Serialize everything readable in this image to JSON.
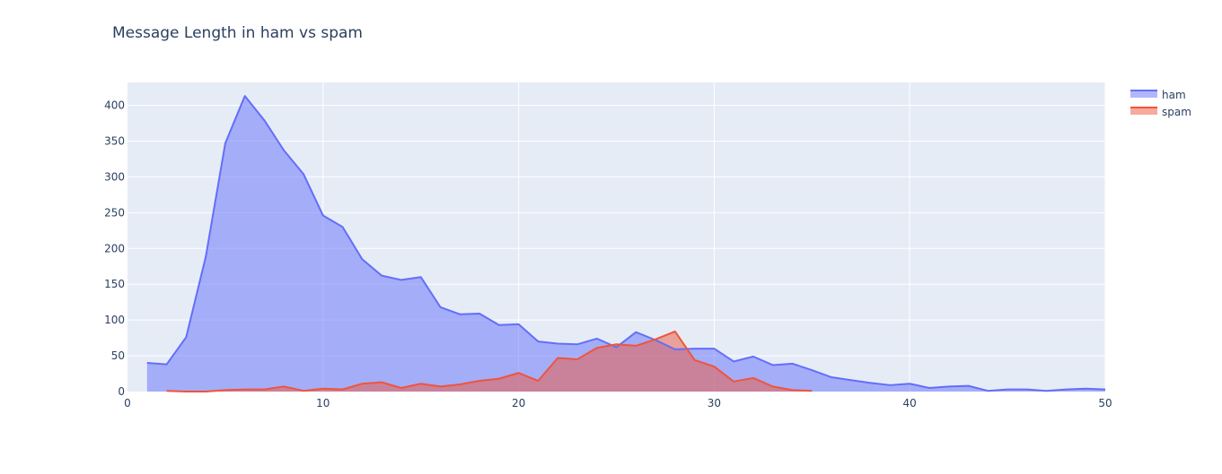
{
  "chart_data": {
    "type": "area",
    "title": "Message Length in ham vs spam",
    "xlabel": "",
    "ylabel": "",
    "xlim": [
      0,
      50
    ],
    "ylim": [
      0,
      432
    ],
    "x_ticks": [
      0,
      10,
      20,
      30,
      40,
      50
    ],
    "y_ticks": [
      0,
      50,
      100,
      150,
      200,
      250,
      300,
      350,
      400
    ],
    "grid": true,
    "legend_position": "top-right",
    "series": [
      {
        "name": "ham",
        "color": "#636efa",
        "fill": "rgba(99,110,250,0.5)",
        "x": [
          1,
          2,
          3,
          4,
          5,
          6,
          7,
          8,
          9,
          10,
          11,
          12,
          13,
          14,
          15,
          16,
          17,
          18,
          19,
          20,
          21,
          22,
          23,
          24,
          25,
          26,
          27,
          28,
          29,
          30,
          31,
          32,
          33,
          34,
          35,
          36,
          37,
          38,
          39,
          40,
          41,
          42,
          43,
          44,
          45,
          46,
          47,
          48,
          49,
          50
        ],
        "y": [
          40,
          38,
          76,
          188,
          347,
          413,
          379,
          337,
          304,
          246,
          230,
          185,
          162,
          156,
          160,
          118,
          108,
          109,
          93,
          94,
          70,
          67,
          66,
          74,
          62,
          83,
          72,
          59,
          60,
          60,
          42,
          49,
          37,
          39,
          30,
          20,
          16,
          12,
          9,
          11,
          5,
          7,
          8,
          1,
          3,
          3,
          1,
          3,
          4,
          3
        ]
      },
      {
        "name": "spam",
        "color": "#ef553b",
        "fill": "rgba(239,85,59,0.5)",
        "x": [
          2,
          3,
          4,
          5,
          6,
          7,
          8,
          9,
          10,
          11,
          12,
          13,
          14,
          15,
          16,
          17,
          18,
          19,
          20,
          21,
          22,
          23,
          24,
          25,
          26,
          27,
          28,
          29,
          30,
          31,
          32,
          33,
          34,
          35
        ],
        "y": [
          1,
          0,
          0,
          2,
          3,
          3,
          7,
          1,
          4,
          3,
          11,
          13,
          5,
          11,
          7,
          10,
          15,
          18,
          26,
          15,
          47,
          45,
          61,
          66,
          64,
          73,
          84,
          44,
          35,
          14,
          19,
          7,
          2,
          1
        ]
      }
    ]
  }
}
